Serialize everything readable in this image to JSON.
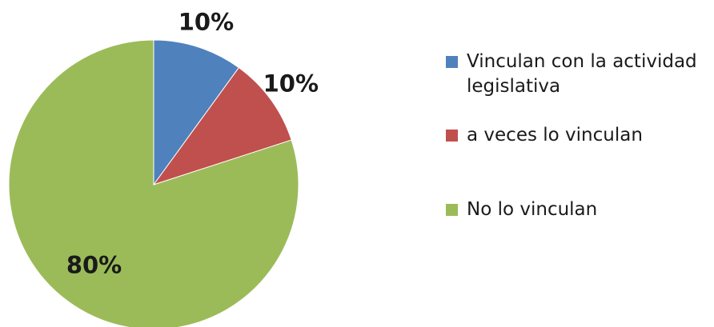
{
  "chart_data": {
    "type": "pie",
    "categories": [
      "Vinculan con la actividad legislativa",
      "a veces lo vinculan",
      "No lo vinculan"
    ],
    "values": [
      10,
      10,
      80
    ],
    "value_labels": [
      "10%",
      "10%",
      "80%"
    ],
    "colors": [
      "#4f81bd",
      "#c0504d",
      "#9bbb59"
    ],
    "legend": "right"
  }
}
